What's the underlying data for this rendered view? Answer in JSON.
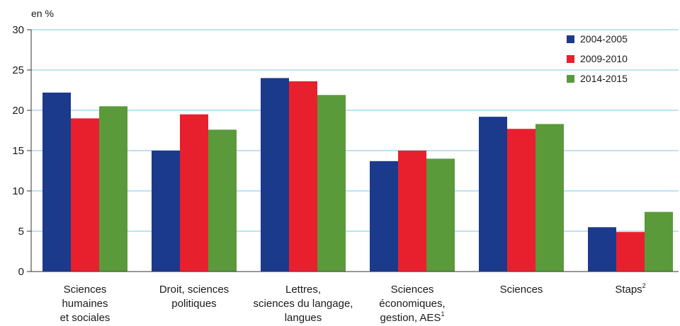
{
  "chart_data": {
    "type": "bar",
    "unit_label": "en %",
    "categories": [
      [
        "Sciences",
        "humaines",
        "et sociales"
      ],
      [
        "Droit, sciences",
        "politiques"
      ],
      [
        "Lettres,",
        "sciences du langage,",
        "langues"
      ],
      [
        "Sciences",
        "économiques,",
        "gestion, AES"
      ],
      [
        "Sciences"
      ],
      [
        "Staps"
      ]
    ],
    "category_footnotes": [
      "",
      "",
      "",
      "1",
      "",
      "2"
    ],
    "series": [
      {
        "name": "2004-2005",
        "color": "#1b3a8c",
        "values": [
          22.2,
          15.0,
          24.0,
          13.7,
          19.2,
          5.5
        ]
      },
      {
        "name": "2009-2010",
        "color": "#e8202d",
        "values": [
          19.0,
          19.5,
          23.6,
          15.0,
          17.7,
          4.9
        ]
      },
      {
        "name": "2014-2015",
        "color": "#5a9a3a",
        "values": [
          20.5,
          17.6,
          21.9,
          14.0,
          18.3,
          7.4
        ]
      }
    ],
    "ylim": [
      0,
      30
    ],
    "yticks": [
      0,
      5,
      10,
      15,
      20,
      25,
      30
    ],
    "grid": true,
    "legend_position": "top-right"
  }
}
